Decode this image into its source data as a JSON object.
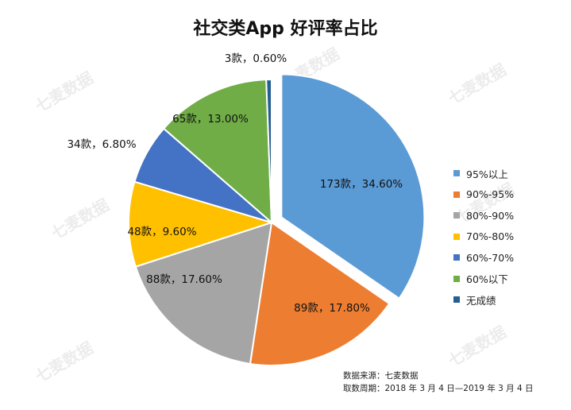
{
  "chart_data": {
    "type": "pie",
    "title": "社交类App 好评率占比",
    "slices": [
      {
        "name": "95%以上",
        "count": 173,
        "percent": 34.6,
        "label": "173款，34.60%",
        "color": "#5b9bd5",
        "exploded": true
      },
      {
        "name": "90%-95%",
        "count": 89,
        "percent": 17.8,
        "label": "89款，17.80%",
        "color": "#ed7d31",
        "exploded": false
      },
      {
        "name": "80%-90%",
        "count": 88,
        "percent": 17.6,
        "label": "88款，17.60%",
        "color": "#a5a5a5",
        "exploded": false
      },
      {
        "name": "70%-80%",
        "count": 48,
        "percent": 9.6,
        "label": "48款，9.60%",
        "color": "#ffc000",
        "exploded": false
      },
      {
        "name": "60%-70%",
        "count": 34,
        "percent": 6.8,
        "label": "34款，6.80%",
        "color": "#4472c4",
        "exploded": false
      },
      {
        "name": "60%以下",
        "count": 65,
        "percent": 13.0,
        "label": "65款，13.00%",
        "color": "#70ad47",
        "exploded": false
      },
      {
        "name": "无成绩",
        "count": 3,
        "percent": 0.6,
        "label": "3款，0.60%",
        "color": "#255e91",
        "exploded": false
      }
    ],
    "legend_position": "right"
  },
  "source": {
    "line1": "数据来源：七麦数据",
    "line2": "取数周期：2018 年 3 月 4 日—2019 年 3 月 4 日"
  },
  "watermark": "七麦数据"
}
